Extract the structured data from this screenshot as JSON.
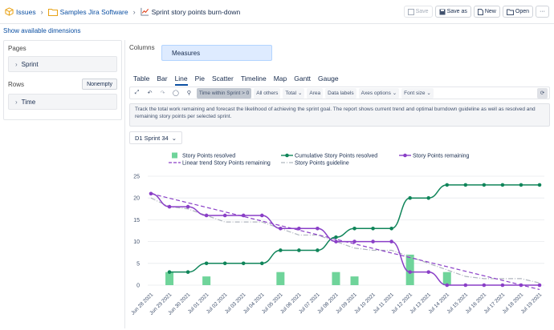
{
  "breadcrumbs": {
    "issues": "Issues",
    "folder": "Samples Jira Software",
    "report": "Sprint story points burn-down"
  },
  "actions": {
    "save": "Save",
    "save_as": "Save as",
    "new": "New",
    "open": "Open",
    "more": "···"
  },
  "show_dimensions": "Show available dimensions",
  "pages": {
    "label": "Pages",
    "item": "Sprint"
  },
  "rows": {
    "label": "Rows",
    "nonempty": "Nonempty",
    "item": "Time"
  },
  "columns": {
    "label": "Columns",
    "item": "Measures"
  },
  "tabs": [
    "Table",
    "Bar",
    "Line",
    "Pie",
    "Scatter",
    "Timeline",
    "Map",
    "Gantt",
    "Gauge"
  ],
  "active_tab": "Line",
  "toolbar": {
    "time_filter": "Time within Sprint > 0",
    "all_others": "All others",
    "total": "Total",
    "area": "Area",
    "data_labels": "Data labels",
    "axes_options": "Axes options",
    "font_size": "Font size"
  },
  "description": "Track the total work remaining and forecast the likelihood of achieving the sprint goal. The report shows current trend and optimal burndown guideline as well as resolved and remaining story points per selected sprint.",
  "page_selector": "D1 Sprint 34",
  "colors": {
    "accent": "#0b4fa2",
    "resolved": "#6fd49a",
    "cumulative": "#10855a",
    "remaining": "#8a3fc7",
    "guideline": "#b0b6bf"
  },
  "chart_data": {
    "type": "line",
    "categories": [
      "Jun 28 2021",
      "Jun 29 2021",
      "Jun 30 2021",
      "Jul 01 2021",
      "Jul 02 2021",
      "Jul 03 2021",
      "Jul 04 2021",
      "Jul 05 2021",
      "Jul 06 2021",
      "Jul 07 2021",
      "Jul 08 2021",
      "Jul 09 2021",
      "Jul 10 2021",
      "Jul 11 2021",
      "Jul 12 2021",
      "Jul 13 2021",
      "Jul 14 2021",
      "Jul 15 2021",
      "Jul 16 2021",
      "Jul 17 2021",
      "Jul 18 2021",
      "Jul 19 2021"
    ],
    "ylim": [
      0,
      25
    ],
    "yticks": [
      0,
      5,
      10,
      15,
      20,
      25
    ],
    "legend_placement": "top",
    "series": [
      {
        "name": "Story Points resolved",
        "kind": "bar",
        "values": [
          0,
          3,
          0,
          2,
          0,
          0,
          0,
          3,
          0,
          0,
          3,
          2,
          0,
          0,
          7,
          0,
          3,
          0,
          0,
          0,
          0,
          0
        ]
      },
      {
        "name": "Cumulative Story Points resolved",
        "kind": "line",
        "values": [
          null,
          3,
          3,
          5,
          5,
          5,
          5,
          8,
          8,
          8,
          11,
          13,
          13,
          13,
          20,
          20,
          23,
          23,
          23,
          23,
          23,
          23
        ]
      },
      {
        "name": "Story Points remaining",
        "kind": "line",
        "values": [
          21,
          18,
          18,
          16,
          16,
          16,
          16,
          13,
          13,
          13,
          10,
          10,
          10,
          10,
          3,
          3,
          0,
          0,
          0,
          0,
          0,
          0
        ]
      },
      {
        "name": "Linear trend Story Points remaining",
        "kind": "dashed",
        "values": [
          21,
          20,
          19,
          18,
          17,
          16,
          15,
          14,
          13,
          12,
          11,
          10,
          9,
          8,
          7,
          6,
          5,
          4,
          3,
          2,
          1,
          -1
        ]
      },
      {
        "name": "Story Points guideline",
        "kind": "dashdot",
        "values": [
          20,
          18,
          17.5,
          16,
          14.5,
          14.5,
          14.5,
          13,
          11.5,
          11.5,
          10,
          8.5,
          8,
          8,
          6.5,
          5,
          3.5,
          2,
          1.5,
          1.5,
          1.5,
          0.5
        ]
      }
    ]
  }
}
